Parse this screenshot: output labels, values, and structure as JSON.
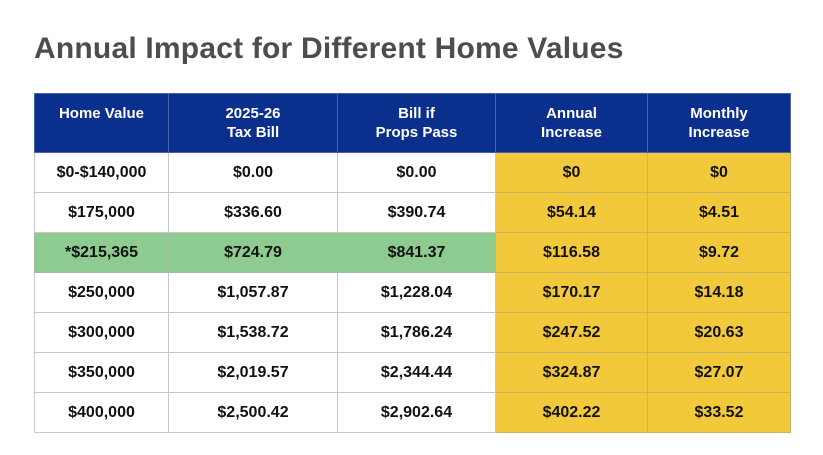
{
  "title": "Annual Impact for Different Home Values",
  "colors": {
    "header_bg": "#0b2f8c",
    "increase_bg": "#f3c93c",
    "highlight_bg": "#8ecb90",
    "title_text": "#4d4d4d"
  },
  "table": {
    "headers": [
      {
        "lines": [
          "Home Value"
        ]
      },
      {
        "lines": [
          "2025-26",
          "Tax Bill"
        ]
      },
      {
        "lines": [
          "Bill if",
          "Props Pass"
        ]
      },
      {
        "lines": [
          "Annual",
          "Increase"
        ]
      },
      {
        "lines": [
          "Monthly",
          "Increase"
        ]
      }
    ],
    "rows": [
      {
        "home_value": "$0-$140,000",
        "tax_bill": "$0.00",
        "bill_if_pass": "$0.00",
        "annual_increase": "$0",
        "monthly_increase": "$0",
        "highlight": false
      },
      {
        "home_value": "$175,000",
        "tax_bill": "$336.60",
        "bill_if_pass": "$390.74",
        "annual_increase": "$54.14",
        "monthly_increase": "$4.51",
        "highlight": false
      },
      {
        "home_value": "*$215,365",
        "tax_bill": "$724.79",
        "bill_if_pass": "$841.37",
        "annual_increase": "$116.58",
        "monthly_increase": "$9.72",
        "highlight": true
      },
      {
        "home_value": "$250,000",
        "tax_bill": "$1,057.87",
        "bill_if_pass": "$1,228.04",
        "annual_increase": "$170.17",
        "monthly_increase": "$14.18",
        "highlight": false
      },
      {
        "home_value": "$300,000",
        "tax_bill": "$1,538.72",
        "bill_if_pass": "$1,786.24",
        "annual_increase": "$247.52",
        "monthly_increase": "$20.63",
        "highlight": false
      },
      {
        "home_value": "$350,000",
        "tax_bill": "$2,019.57",
        "bill_if_pass": "$2,344.44",
        "annual_increase": "$324.87",
        "monthly_increase": "$27.07",
        "highlight": false
      },
      {
        "home_value": "$400,000",
        "tax_bill": "$2,500.42",
        "bill_if_pass": "$2,902.64",
        "annual_increase": "$402.22",
        "monthly_increase": "$33.52",
        "highlight": false
      }
    ]
  }
}
